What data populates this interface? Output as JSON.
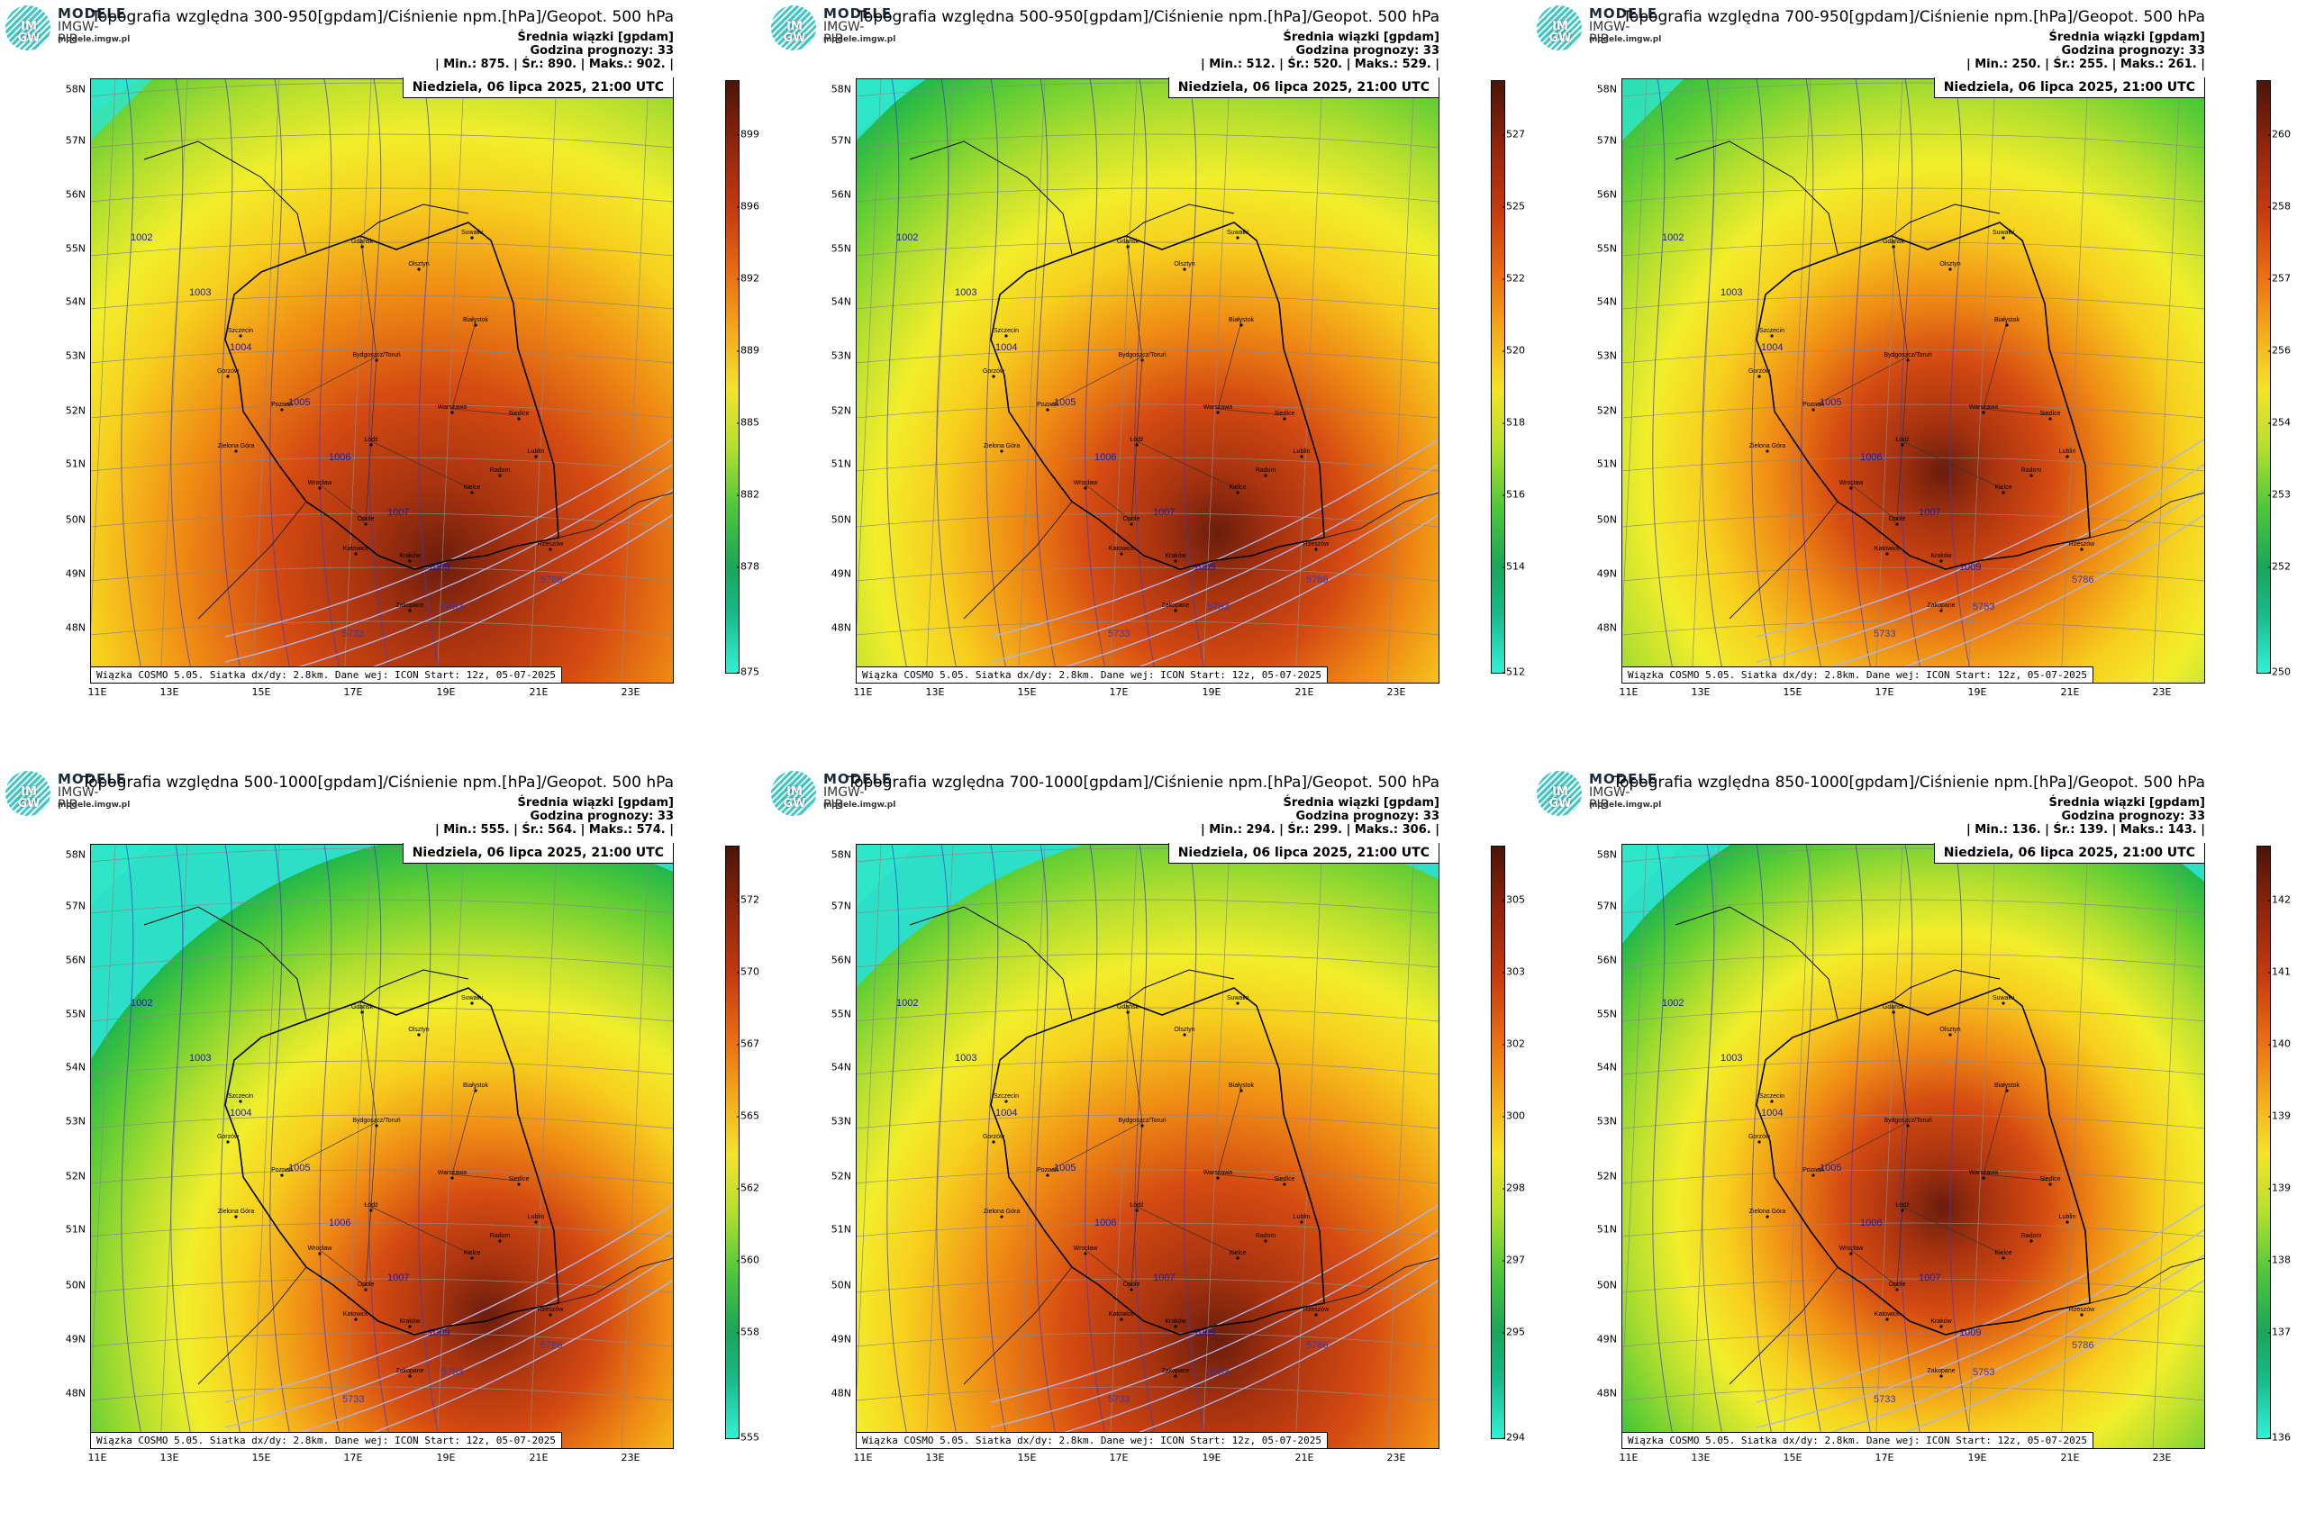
{
  "logo": {
    "initials_top": "IM",
    "initials_bottom": "GW",
    "brand": "MODELE",
    "sub": "IMGW-PIB",
    "url": "modele.imgw.pl"
  },
  "common": {
    "subtitle_line1": "Średnia wiązki [gpdam]",
    "subtitle_line2": "Godzina prognozy: 33",
    "date": "Niedziela, 06 lipca 2025, 21:00 UTC",
    "footer": "Wiązka COSMO 5.05. Siatka dx/dy: 2.8km. Dane wej: ICON Start: 12z, 05-07-2025",
    "lat_labels": [
      "58N",
      "57N",
      "56N",
      "55N",
      "54N",
      "53N",
      "52N",
      "51N",
      "50N",
      "49N",
      "48N"
    ],
    "lon_labels": [
      "11E",
      "13E",
      "15E",
      "17E",
      "19E",
      "21E",
      "23E"
    ]
  },
  "panels": [
    {
      "title": "Topografia względna 300-950[gpdam]/Ciśnienie npm.[hPa]/Geopot. 500 hPa",
      "stats": "| Min.: 875. | Śr.: 890. | Maks.: 902. |",
      "scale": [
        "899",
        "896",
        "892",
        "889",
        "885",
        "882",
        "878",
        "875"
      ]
    },
    {
      "title": "Topografia względna 500-950[gpdam]/Ciśnienie npm.[hPa]/Geopot. 500 hPa",
      "stats": "| Min.: 512. | Śr.: 520. | Maks.: 529. |",
      "scale": [
        "527",
        "525",
        "522",
        "520",
        "518",
        "516",
        "514",
        "512"
      ]
    },
    {
      "title": "Topografia względna 700-950[gpdam]/Ciśnienie npm.[hPa]/Geopot. 500 hPa",
      "stats": "| Min.: 250. | Śr.: 255. | Maks.: 261. |",
      "scale": [
        "260",
        "258",
        "257",
        "256",
        "254",
        "253",
        "252",
        "250"
      ]
    },
    {
      "title": "Topografia względna 500-1000[gpdam]/Ciśnienie npm.[hPa]/Geopot. 500 hPa",
      "stats": "| Min.: 555. | Śr.: 564. | Maks.: 574. |",
      "scale": [
        "572",
        "570",
        "567",
        "565",
        "562",
        "560",
        "558",
        "555"
      ]
    },
    {
      "title": "Topografia względna 700-1000[gpdam]/Ciśnienie npm.[hPa]/Geopot. 500 hPa",
      "stats": "| Min.: 294. | Śr.: 299. | Maks.: 306. |",
      "scale": [
        "305",
        "303",
        "302",
        "300",
        "298",
        "297",
        "295",
        "294"
      ]
    },
    {
      "title": "Topografia względna 850-1000[gpdam]/Ciśnienie npm.[hPa]/Geopot. 500 hPa",
      "stats": "| Min.: 136. | Śr.: 139. | Maks.: 143. |",
      "scale": [
        "142",
        "141",
        "140",
        "139",
        "139",
        "138",
        "137",
        "136"
      ]
    }
  ],
  "isobars": [
    "1002",
    "1003",
    "1004",
    "1005",
    "1006",
    "1007",
    "1009"
  ],
  "geopotential_labels": [
    "5733",
    "5753",
    "5786"
  ],
  "cities": [
    "Gdańsk",
    "Olsztyn",
    "Suwałki",
    "Szczecin",
    "Białystok",
    "Bydgoszcz/Toruń",
    "Gorzów",
    "Poznań",
    "Warszawa",
    "Zielona Góra",
    "Łódź",
    "Siedlce",
    "Lublin",
    "Wrocław",
    "Kielce",
    "Opole",
    "Radom",
    "Katowice",
    "Kraków",
    "Rzeszów",
    "Zakopane"
  ]
}
